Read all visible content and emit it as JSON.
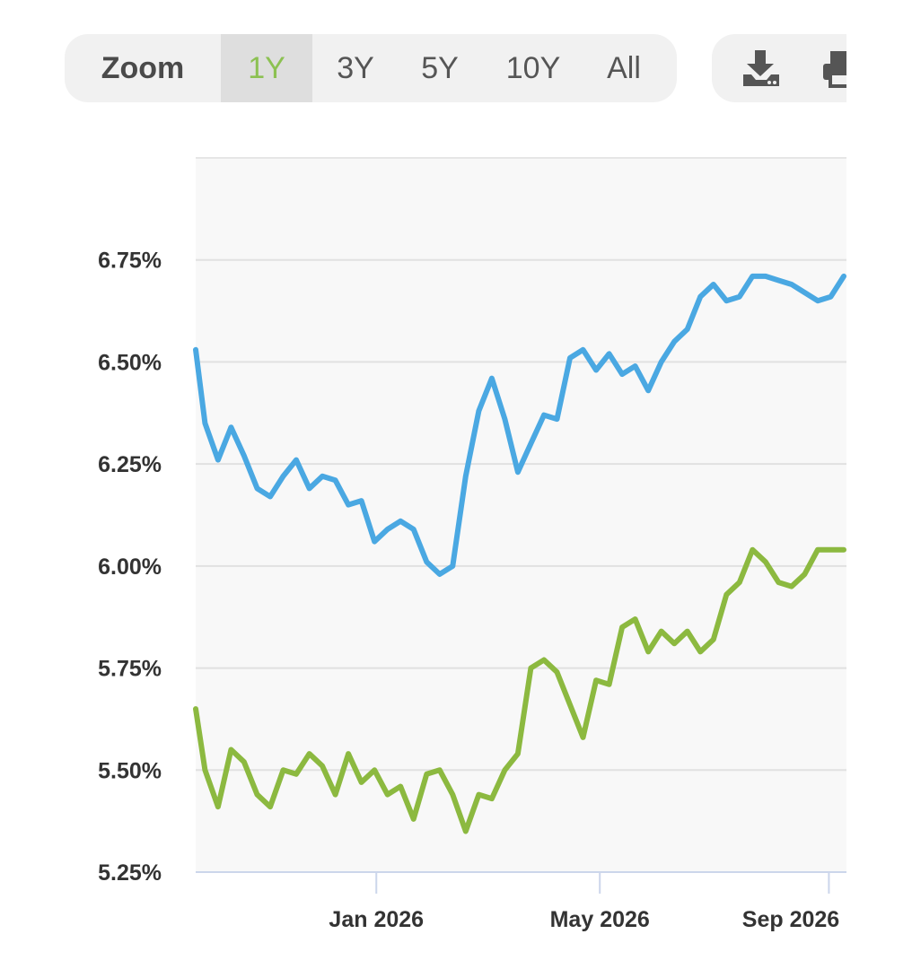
{
  "toolbar": {
    "zoom_label": "Zoom",
    "ranges": [
      {
        "label": "1Y",
        "active": true
      },
      {
        "label": "3Y",
        "active": false
      },
      {
        "label": "5Y",
        "active": false
      },
      {
        "label": "10Y",
        "active": false
      },
      {
        "label": "All",
        "active": false
      }
    ],
    "actions": [
      {
        "icon": "download-icon"
      },
      {
        "icon": "print-icon"
      }
    ]
  },
  "chart_data": {
    "type": "line",
    "x": [
      "2025-09-26",
      "2025-10-01",
      "2025-10-08",
      "2025-10-15",
      "2025-10-22",
      "2025-10-29",
      "2025-11-05",
      "2025-11-12",
      "2025-11-19",
      "2025-11-26",
      "2025-12-03",
      "2025-12-10",
      "2025-12-17",
      "2025-12-24",
      "2025-12-31",
      "2026-01-07",
      "2026-01-14",
      "2026-01-21",
      "2026-01-28",
      "2026-02-04",
      "2026-02-11",
      "2026-02-18",
      "2026-02-25",
      "2026-03-04",
      "2026-03-11",
      "2026-03-18",
      "2026-03-25",
      "2026-04-01",
      "2026-04-08",
      "2026-04-15",
      "2026-04-22",
      "2026-04-29",
      "2026-05-06",
      "2026-05-13",
      "2026-05-20",
      "2026-05-27",
      "2026-06-03",
      "2026-06-10",
      "2026-06-17",
      "2026-06-24",
      "2026-07-01",
      "2026-07-08",
      "2026-07-15",
      "2026-07-22",
      "2026-07-29",
      "2026-08-05",
      "2026-08-12",
      "2026-08-19",
      "2026-08-26",
      "2026-09-02",
      "2026-09-09"
    ],
    "series": [
      {
        "color": "#4aa8e2",
        "values": [
          6.53,
          6.35,
          6.26,
          6.34,
          6.27,
          6.19,
          6.17,
          6.22,
          6.26,
          6.19,
          6.22,
          6.21,
          6.15,
          6.16,
          6.06,
          6.09,
          6.11,
          6.09,
          6.01,
          5.98,
          6.0,
          6.22,
          6.38,
          6.46,
          6.36,
          6.23,
          6.3,
          6.37,
          6.36,
          6.51,
          6.53,
          6.48,
          6.52,
          6.47,
          6.49,
          6.43,
          6.5,
          6.55,
          6.58,
          6.66,
          6.69,
          6.65,
          6.66,
          6.71,
          6.71,
          6.7,
          6.69,
          6.67,
          6.65,
          6.66,
          6.71
        ]
      },
      {
        "color": "#8cb940",
        "values": [
          5.65,
          5.5,
          5.41,
          5.55,
          5.52,
          5.44,
          5.41,
          5.5,
          5.49,
          5.54,
          5.51,
          5.44,
          5.54,
          5.47,
          5.5,
          5.44,
          5.46,
          5.38,
          5.49,
          5.5,
          5.44,
          5.35,
          5.44,
          5.43,
          5.5,
          5.54,
          5.75,
          5.77,
          5.74,
          5.66,
          5.58,
          5.72,
          5.71,
          5.85,
          5.87,
          5.79,
          5.84,
          5.81,
          5.84,
          5.79,
          5.82,
          5.93,
          5.96,
          6.04,
          6.01,
          5.96,
          5.95,
          5.98,
          6.04,
          6.04,
          6.04
        ]
      }
    ],
    "y_ticks": [
      "5.25%",
      "5.50%",
      "5.75%",
      "6.00%",
      "6.25%",
      "6.50%",
      "6.75%"
    ],
    "ylim": [
      5.25,
      7.0
    ],
    "x_ticks": [
      {
        "label": "Jan 2026",
        "date": "2026-01-01"
      },
      {
        "label": "May 2026",
        "date": "2026-05-01"
      },
      {
        "label": "Sep 2026",
        "date": "2026-09-01"
      }
    ],
    "grid": true,
    "legend": "none"
  }
}
